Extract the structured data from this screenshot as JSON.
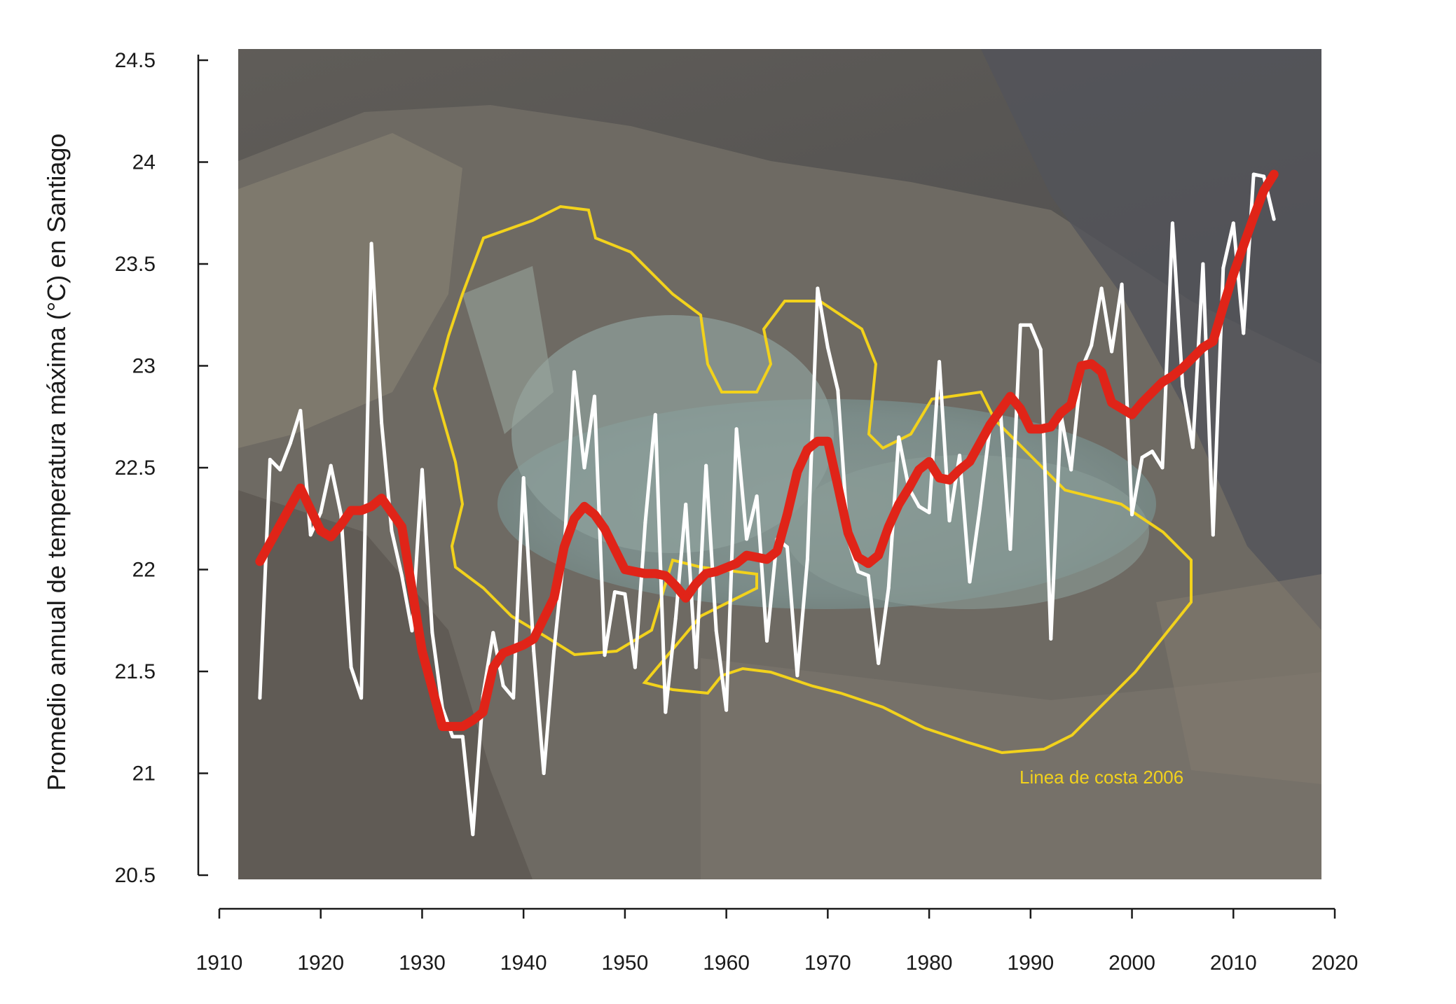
{
  "chart_data": {
    "type": "line",
    "title": "",
    "xlabel": "",
    "ylabel": "Promedio annual de temperatura máxima (°C) en Santiago",
    "xlim": [
      1910,
      2020
    ],
    "ylim": [
      20.5,
      24.5
    ],
    "x_ticks": [
      1910,
      1920,
      1930,
      1940,
      1950,
      1960,
      1970,
      1980,
      1990,
      2000,
      2010,
      2020
    ],
    "y_ticks": [
      20.5,
      21,
      21.5,
      22,
      22.5,
      23,
      23.5,
      24,
      24.5
    ],
    "y_tick_labels": [
      "20.5",
      "21",
      "21.5",
      "22",
      "22.5",
      "23",
      "23.5",
      "24",
      "24.5"
    ],
    "grid": false,
    "background": "aerial photograph of a lake (Laguna de Aculeo) with a yellow 2006 shoreline outline",
    "annotations": [
      {
        "text": "Linea de costa 2006",
        "color": "#f2d21c",
        "x": 1997,
        "y": 20.95
      }
    ],
    "series": [
      {
        "name": "",
        "color": "#ffffff",
        "style": "annual values",
        "x": [
          1914,
          1915,
          1916,
          1917,
          1918,
          1919,
          1920,
          1921,
          1922,
          1923,
          1924,
          1925,
          1926,
          1927,
          1928,
          1929,
          1930,
          1931,
          1932,
          1933,
          1934,
          1935,
          1936,
          1937,
          1938,
          1939,
          1940,
          1941,
          1942,
          1943,
          1944,
          1945,
          1946,
          1947,
          1948,
          1949,
          1950,
          1951,
          1952,
          1953,
          1954,
          1955,
          1956,
          1957,
          1958,
          1959,
          1960,
          1961,
          1962,
          1963,
          1964,
          1965,
          1966,
          1967,
          1968,
          1969,
          1970,
          1971,
          1972,
          1973,
          1974,
          1975,
          1976,
          1977,
          1978,
          1979,
          1980,
          1981,
          1982,
          1983,
          1984,
          1985,
          1986,
          1987,
          1988,
          1989,
          1990,
          1991,
          1992,
          1993,
          1994,
          1995,
          1996,
          1997,
          1998,
          1999,
          2000,
          2001,
          2002,
          2003,
          2004,
          2005,
          2006,
          2007,
          2008,
          2009,
          2010,
          2011,
          2012,
          2013,
          2014
        ],
        "values": [
          21.37,
          22.54,
          22.49,
          22.62,
          22.78,
          22.17,
          22.28,
          22.51,
          22.27,
          21.52,
          21.37,
          23.6,
          22.72,
          22.19,
          21.97,
          21.7,
          22.49,
          21.69,
          21.32,
          21.18,
          21.18,
          20.7,
          21.38,
          21.69,
          21.43,
          21.37,
          22.45,
          21.6,
          21.0,
          21.6,
          22.08,
          22.97,
          22.5,
          22.85,
          21.58,
          21.89,
          21.88,
          21.52,
          22.23,
          22.76,
          21.3,
          21.76,
          22.32,
          21.52,
          22.51,
          21.7,
          21.31,
          22.69,
          22.15,
          22.36,
          21.65,
          22.15,
          22.11,
          21.48,
          22.05,
          23.38,
          23.09,
          22.88,
          22.15,
          21.99,
          21.97,
          21.54,
          21.91,
          22.65,
          22.4,
          22.31,
          22.28,
          23.02,
          22.24,
          22.56,
          21.94,
          22.3,
          22.7,
          22.8,
          22.1,
          23.2,
          23.2,
          23.08,
          21.66,
          22.76,
          22.49,
          22.98,
          23.1,
          23.38,
          23.07,
          23.4,
          22.27,
          22.55,
          22.58,
          22.5,
          23.7,
          22.9,
          22.6,
          23.5,
          22.17,
          23.48,
          23.7,
          23.16,
          23.94,
          23.93,
          23.72
        ]
      },
      {
        "name": "",
        "color": "#e02418",
        "style": "smoothed trend",
        "x": [
          1914,
          1916,
          1918,
          1920,
          1921,
          1922,
          1923,
          1924,
          1925,
          1926,
          1928,
          1930,
          1932,
          1933,
          1934,
          1935,
          1936,
          1937,
          1938,
          1939,
          1940,
          1941,
          1942,
          1943,
          1944,
          1945,
          1946,
          1947,
          1948,
          1949,
          1950,
          1951,
          1952,
          1953,
          1954,
          1955,
          1956,
          1957,
          1958,
          1959,
          1960,
          1961,
          1962,
          1963,
          1964,
          1965,
          1966,
          1967,
          1968,
          1969,
          1970,
          1971,
          1972,
          1973,
          1974,
          1975,
          1976,
          1977,
          1978,
          1979,
          1980,
          1981,
          1982,
          1983,
          1984,
          1985,
          1986,
          1987,
          1988,
          1989,
          1990,
          1991,
          1992,
          1993,
          1994,
          1995,
          1996,
          1997,
          1998,
          1999,
          2000,
          2001,
          2002,
          2003,
          2004,
          2005,
          2006,
          2007,
          2008,
          2009,
          2010,
          2011,
          2012,
          2013,
          2014
        ],
        "values": [
          22.04,
          22.22,
          22.4,
          22.19,
          22.16,
          22.22,
          22.29,
          22.29,
          22.31,
          22.35,
          22.21,
          21.6,
          21.23,
          21.23,
          21.23,
          21.26,
          21.3,
          21.52,
          21.59,
          21.61,
          21.63,
          21.66,
          21.76,
          21.86,
          22.11,
          22.25,
          22.31,
          22.27,
          22.2,
          22.1,
          22.0,
          21.99,
          21.98,
          21.98,
          21.97,
          21.92,
          21.86,
          21.93,
          21.98,
          21.99,
          22.01,
          22.03,
          22.07,
          22.06,
          22.05,
          22.09,
          22.27,
          22.48,
          22.59,
          22.63,
          22.63,
          22.41,
          22.18,
          22.06,
          22.03,
          22.07,
          22.21,
          22.32,
          22.4,
          22.49,
          22.53,
          22.45,
          22.44,
          22.49,
          22.53,
          22.62,
          22.71,
          22.78,
          22.85,
          22.79,
          22.69,
          22.69,
          22.7,
          22.77,
          22.81,
          23.0,
          23.01,
          22.97,
          22.82,
          22.79,
          22.76,
          22.82,
          22.87,
          22.92,
          22.95,
          22.99,
          23.04,
          23.09,
          23.12,
          23.29,
          23.45,
          23.59,
          23.73,
          23.86,
          23.94
        ]
      }
    ]
  }
}
